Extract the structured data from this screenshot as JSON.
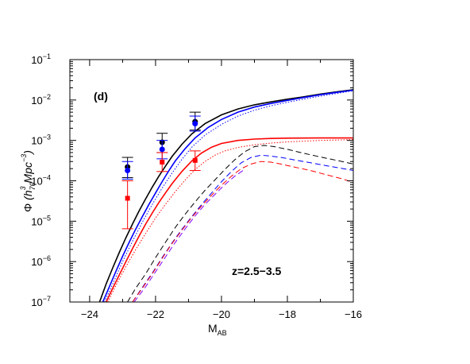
{
  "chart_data": {
    "type": "line",
    "panel_label": "(d)",
    "annotation": "z=2.5−3.5",
    "xlabel": {
      "main": "M",
      "sub": "AB"
    },
    "ylabel": {
      "phi": "Φ",
      "open": " (h",
      "h_sub": "70",
      "h_sup": "3",
      "mpc": " Mpc",
      "mpc_sup": "−3",
      "close": ")"
    },
    "xlim": [
      -24.6,
      -16
    ],
    "ylim": [
      1e-07,
      0.1
    ],
    "yscale": "log",
    "x_ticks": [
      {
        "value": -24,
        "label": "−24"
      },
      {
        "value": -22,
        "label": "−22"
      },
      {
        "value": -20,
        "label": "−20"
      },
      {
        "value": -18,
        "label": "−18"
      },
      {
        "value": -16,
        "label": "−16"
      }
    ],
    "y_ticks": [
      {
        "value": 1e-07,
        "base": "10",
        "exp": "−7"
      },
      {
        "value": 1e-06,
        "base": "10",
        "exp": "−6"
      },
      {
        "value": 1e-05,
        "base": "10",
        "exp": "−5"
      },
      {
        "value": 0.0001,
        "base": "10",
        "exp": "−4"
      },
      {
        "value": 0.001,
        "base": "10",
        "exp": "−3"
      },
      {
        "value": 0.01,
        "base": "10",
        "exp": "−2"
      },
      {
        "value": 0.1,
        "base": "10",
        "exp": "−1"
      }
    ],
    "series": [
      {
        "color": "#000000",
        "dash": "solid",
        "x": [
          -23.7,
          -23.5,
          -23.3,
          -23.1,
          -22.9,
          -22.7,
          -22.5,
          -22.3,
          -22.1,
          -21.9,
          -21.7,
          -21.5,
          -21.2,
          -20.9,
          -20.5,
          -20,
          -19.5,
          -19,
          -18.5,
          -18,
          -17.5,
          -17,
          -16.5,
          -16
        ],
        "y": [
          1e-07,
          2.8e-07,
          7e-07,
          1.7e-06,
          3.9e-06,
          8.5e-06,
          1.8e-05,
          3.6e-05,
          7e-05,
          0.00013,
          0.00023,
          0.0004,
          0.0008,
          0.00145,
          0.0026,
          0.0043,
          0.006,
          0.0076,
          0.009,
          0.0105,
          0.012,
          0.014,
          0.016,
          0.018
        ]
      },
      {
        "color": "#0000ff",
        "dash": "solid",
        "x": [
          -23.6,
          -23.4,
          -23.2,
          -23,
          -22.8,
          -22.6,
          -22.4,
          -22.2,
          -22,
          -21.8,
          -21.6,
          -21.4,
          -21.1,
          -20.8,
          -20.4,
          -20,
          -19.5,
          -19,
          -18.5,
          -18,
          -17.5,
          -17,
          -16.5,
          -16
        ],
        "y": [
          1e-07,
          2.4e-07,
          5.8e-07,
          1.35e-06,
          3e-06,
          6.4e-06,
          1.3e-05,
          2.6e-05,
          5e-05,
          9.5e-05,
          0.000175,
          0.00031,
          0.00063,
          0.00115,
          0.0021,
          0.0033,
          0.005,
          0.0067,
          0.0082,
          0.0098,
          0.0115,
          0.0135,
          0.0155,
          0.0175
        ]
      },
      {
        "color": "#0000ff",
        "dash": "dotted",
        "x": [
          -23.55,
          -23.3,
          -23,
          -22.7,
          -22.4,
          -22.1,
          -21.8,
          -21.5,
          -21.2,
          -20.9,
          -20.5,
          -20,
          -19.5,
          -19,
          -18.5,
          -18,
          -17.5,
          -17,
          -16.5,
          -16
        ],
        "y": [
          1e-07,
          2.8e-07,
          1e-06,
          3.2e-06,
          9.5e-06,
          2.6e-05,
          6.6e-05,
          0.000155,
          0.00034,
          0.00068,
          0.00135,
          0.0025,
          0.004,
          0.0056,
          0.0072,
          0.0088,
          0.0105,
          0.0125,
          0.0145,
          0.017
        ]
      },
      {
        "color": "#ff0000",
        "dash": "solid",
        "x": [
          -23.5,
          -23.3,
          -23.1,
          -22.9,
          -22.7,
          -22.5,
          -22.3,
          -22.1,
          -21.9,
          -21.7,
          -21.5,
          -21.2,
          -20.9,
          -20.6,
          -20.3,
          -20,
          -19.5,
          -19,
          -18.5,
          -18,
          -17,
          -16
        ],
        "y": [
          1e-07,
          2.2e-07,
          4.7e-07,
          1e-06,
          2.1e-06,
          4.3e-06,
          8.5e-06,
          1.6e-05,
          2.9e-05,
          5e-05,
          8.5e-05,
          0.00017,
          0.00031,
          0.00049,
          0.00068,
          0.00084,
          0.001,
          0.00108,
          0.00112,
          0.00114,
          0.00115,
          0.00115
        ]
      },
      {
        "color": "#ff0000",
        "dash": "dotted",
        "x": [
          -23.45,
          -23.2,
          -22.9,
          -22.6,
          -22.3,
          -22,
          -21.7,
          -21.4,
          -21.1,
          -20.8,
          -20.5,
          -20.2,
          -19.9,
          -19.5,
          -19,
          -18.5,
          -18,
          -17,
          -16
        ],
        "y": [
          1e-07,
          2.6e-07,
          7.5e-07,
          2e-06,
          5e-06,
          1.2e-05,
          2.6e-05,
          5.4e-05,
          0.000105,
          0.00019,
          0.0003,
          0.00043,
          0.00055,
          0.00067,
          0.00078,
          0.00086,
          0.00092,
          0.001,
          0.00105
        ]
      },
      {
        "color": "#000000",
        "dash": "dashed",
        "x": [
          -22.85,
          -22.6,
          -22.3,
          -22,
          -21.7,
          -21.4,
          -21.1,
          -20.8,
          -20.5,
          -20.2,
          -19.9,
          -19.6,
          -19.3,
          -19,
          -18.7,
          -18.4,
          -18,
          -17.5,
          -17,
          -16.5,
          -16
        ],
        "y": [
          1e-07,
          2.2e-07,
          5e-07,
          1.25e-06,
          3e-06,
          7e-06,
          1.5e-05,
          3e-05,
          5.8e-05,
          0.000105,
          0.00019,
          0.00033,
          0.00052,
          0.0007,
          0.00075,
          0.0007,
          0.0006,
          0.00048,
          0.00039,
          0.00032,
          0.00026
        ]
      },
      {
        "color": "#0000ff",
        "dash": "dashed",
        "x": [
          -22.7,
          -22.4,
          -22.1,
          -21.8,
          -21.5,
          -21.2,
          -20.9,
          -20.6,
          -20.3,
          -20,
          -19.7,
          -19.4,
          -19.1,
          -18.8,
          -18.5,
          -18.2,
          -17.8,
          -17.3,
          -16.8,
          -16.3,
          -16
        ],
        "y": [
          1e-07,
          2.3e-07,
          5.2e-07,
          1.25e-06,
          2.9e-06,
          6.3e-06,
          1.3e-05,
          2.6e-05,
          5e-05,
          9.5e-05,
          0.00017,
          0.00028,
          0.00038,
          0.00043,
          0.00041,
          0.00038,
          0.00033,
          0.00028,
          0.000235,
          0.0002,
          0.00018
        ]
      },
      {
        "color": "#ff0000",
        "dash": "dashed",
        "x": [
          -22.7,
          -22.4,
          -22.1,
          -21.8,
          -21.5,
          -21.2,
          -20.9,
          -20.6,
          -20.3,
          -20,
          -19.7,
          -19.4,
          -19.1,
          -18.8,
          -18.5,
          -18.2,
          -17.8,
          -17.3,
          -16.8,
          -16.3,
          -16
        ],
        "y": [
          1e-07,
          2.2e-07,
          5e-07,
          1.2e-06,
          2.8e-06,
          6e-06,
          1.25e-05,
          2.4e-05,
          4.4e-05,
          7.8e-05,
          0.00013,
          0.0002,
          0.00026,
          0.0003,
          0.00029,
          0.00026,
          0.00022,
          0.00018,
          0.00014,
          0.00011,
          9e-05
        ]
      },
      {
        "color": "#8000ff",
        "dash": "dashed",
        "x": [
          -22.65,
          -22.3,
          -22,
          -21.7,
          -21.4,
          -21.1,
          -20.8,
          -20.5,
          -20.2,
          -19.9,
          -19.6,
          -19.3
        ],
        "y": [
          1e-07,
          2.4e-07,
          5.6e-07,
          1.3e-06,
          3e-06,
          6.5e-06,
          1.35e-05,
          2.6e-05,
          4.6e-05,
          8e-05,
          0.00013,
          0.00019
        ]
      }
    ],
    "points": [
      {
        "color": "#000000",
        "marker": "circle",
        "x": -22.85,
        "y": 0.00022,
        "lo": 0.00012,
        "hi": 0.00038
      },
      {
        "color": "#0000ff",
        "marker": "circle",
        "x": -22.85,
        "y": 0.00018,
        "lo": 0.00011,
        "hi": 0.0003
      },
      {
        "color": "#ff0000",
        "marker": "square",
        "x": -22.85,
        "y": 3.7e-05,
        "lo": 6.5e-06,
        "hi": 0.0001
      },
      {
        "color": "#000000",
        "marker": "circle",
        "x": -21.8,
        "y": 0.0009,
        "lo": 0.0005,
        "hi": 0.0015
      },
      {
        "color": "#0000ff",
        "marker": "circle",
        "x": -21.8,
        "y": 0.0006,
        "lo": 0.00035,
        "hi": 0.001
      },
      {
        "color": "#ff0000",
        "marker": "square",
        "x": -21.8,
        "y": 0.00029,
        "lo": 0.00017,
        "hi": 0.0005
      },
      {
        "color": "#000000",
        "marker": "circle",
        "x": -20.8,
        "y": 0.0029,
        "lo": 0.0018,
        "hi": 0.005
      },
      {
        "color": "#0000ff",
        "marker": "circle",
        "x": -20.8,
        "y": 0.0026,
        "lo": 0.0017,
        "hi": 0.004
      },
      {
        "color": "#ff0000",
        "marker": "square",
        "x": -20.8,
        "y": 0.00032,
        "lo": 0.00018,
        "hi": 0.00055
      }
    ]
  }
}
